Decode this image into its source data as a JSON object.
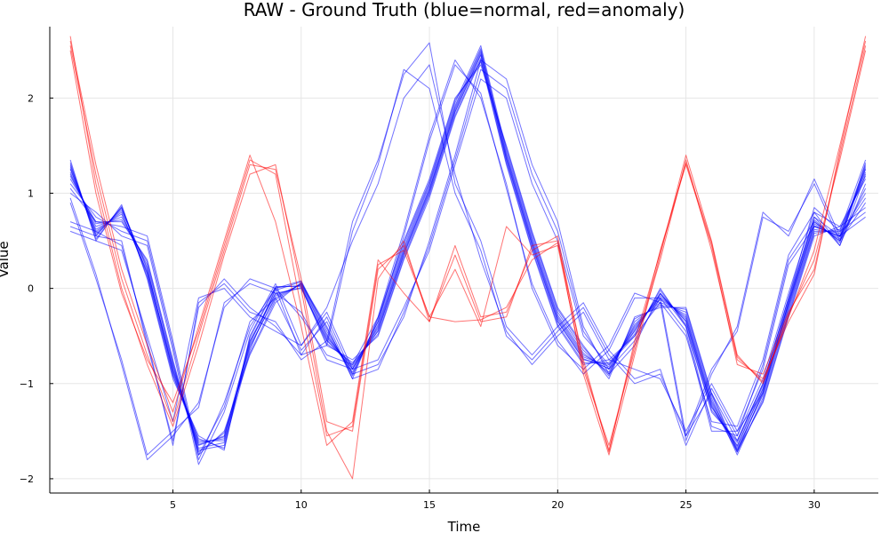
{
  "chart_data": {
    "type": "line",
    "title": "RAW - Ground Truth (blue=normal, red=anomaly)",
    "xlabel": "Time",
    "ylabel": "Value",
    "xlim": [
      0.2,
      32.5
    ],
    "ylim": [
      -2.15,
      2.75
    ],
    "xticks": [
      5,
      10,
      15,
      20,
      25,
      30
    ],
    "yticks": [
      -2,
      -1,
      0,
      1,
      2
    ],
    "grid": true,
    "legend": "none",
    "colors": {
      "normal": "#0000ff",
      "anomaly": "#ff0000"
    },
    "x": [
      1,
      2,
      3,
      4,
      5,
      6,
      7,
      8,
      9,
      10,
      11,
      12,
      13,
      14,
      15,
      16,
      17,
      18,
      19,
      20,
      21,
      22,
      23,
      24,
      25,
      26,
      27,
      28,
      29,
      30,
      31,
      32
    ],
    "series": [
      {
        "class": "normal",
        "values": [
          1.3,
          0.55,
          0.85,
          0.2,
          -0.85,
          -1.6,
          -1.6,
          -0.6,
          -0.1,
          0.05,
          -0.5,
          -0.85,
          -0.4,
          0.4,
          1.05,
          1.9,
          2.5,
          1.4,
          0.5,
          -0.3,
          -0.7,
          -0.85,
          -0.4,
          -0.1,
          -0.3,
          -1.2,
          -1.7,
          -1.1,
          -0.2,
          0.65,
          0.55,
          1.3
        ]
      },
      {
        "class": "normal",
        "values": [
          1.25,
          0.6,
          0.8,
          0.15,
          -0.9,
          -1.65,
          -1.55,
          -0.55,
          -0.05,
          0.0,
          -0.55,
          -0.8,
          -0.45,
          0.35,
          1.0,
          1.85,
          2.45,
          1.35,
          0.45,
          -0.35,
          -0.75,
          -0.8,
          -0.45,
          -0.05,
          -0.35,
          -1.25,
          -1.65,
          -1.05,
          -0.15,
          0.7,
          0.5,
          1.25
        ]
      },
      {
        "class": "normal",
        "values": [
          1.2,
          0.65,
          0.75,
          0.25,
          -0.8,
          -1.7,
          -1.65,
          -0.65,
          0.0,
          0.08,
          -0.45,
          -0.9,
          -0.35,
          0.45,
          1.1,
          1.95,
          2.55,
          1.45,
          0.55,
          -0.25,
          -0.65,
          -0.9,
          -0.35,
          -0.15,
          -0.25,
          -1.15,
          -1.75,
          -1.15,
          -0.25,
          0.6,
          0.6,
          1.35
        ]
      },
      {
        "class": "normal",
        "values": [
          1.35,
          0.5,
          0.88,
          0.1,
          -0.95,
          -1.55,
          -1.7,
          -0.5,
          0.02,
          0.02,
          -0.6,
          -0.75,
          -0.5,
          0.3,
          0.95,
          1.8,
          2.4,
          1.3,
          0.4,
          -0.4,
          -0.8,
          -0.75,
          -0.5,
          0.0,
          -0.4,
          -1.3,
          -1.6,
          -1.0,
          -0.1,
          0.75,
          0.45,
          1.2
        ]
      },
      {
        "class": "normal",
        "values": [
          1.15,
          0.7,
          0.7,
          0.3,
          -0.75,
          -1.75,
          -1.5,
          -0.7,
          -0.15,
          0.06,
          -0.4,
          -0.95,
          -0.3,
          0.5,
          1.15,
          2.0,
          2.35,
          1.5,
          0.6,
          -0.2,
          -0.6,
          -0.95,
          -0.3,
          -0.2,
          -0.2,
          -1.1,
          -1.7,
          -1.2,
          -0.3,
          0.55,
          0.65,
          1.15
        ]
      },
      {
        "class": "normal",
        "values": [
          1.28,
          0.58,
          0.82,
          0.22,
          -0.88,
          -1.62,
          -1.58,
          -0.62,
          -0.08,
          0.04,
          -0.52,
          -0.82,
          -0.42,
          0.38,
          1.02,
          1.88,
          2.48,
          1.38,
          0.48,
          -0.32,
          -0.72,
          -0.82,
          -0.42,
          -0.08,
          -0.32,
          -1.22,
          -1.72,
          -1.08,
          -0.18,
          0.68,
          0.52,
          1.28
        ]
      },
      {
        "class": "normal",
        "values": [
          1.22,
          0.62,
          0.78,
          0.18,
          -0.82,
          -1.68,
          -1.62,
          -0.58,
          -0.02,
          0.07,
          -0.48,
          -0.88,
          -0.38,
          0.42,
          1.08,
          1.92,
          2.52,
          1.42,
          0.52,
          -0.28,
          -0.68,
          -0.88,
          -0.38,
          -0.12,
          -0.28,
          -1.18,
          -1.68,
          -1.12,
          -0.22,
          0.62,
          0.58,
          1.22
        ]
      },
      {
        "class": "normal",
        "values": [
          1.32,
          0.52,
          0.86,
          0.12,
          -0.92,
          -1.58,
          -1.68,
          -0.52,
          0.01,
          0.03,
          -0.58,
          -0.78,
          -0.48,
          0.32,
          0.98,
          1.82,
          2.42,
          1.32,
          0.42,
          -0.38,
          -0.78,
          -0.78,
          -0.48,
          -0.02,
          -0.38,
          -1.28,
          -1.62,
          -1.02,
          -0.12,
          0.72,
          0.48,
          1.32
        ]
      },
      {
        "class": "normal",
        "values": [
          1.18,
          0.68,
          0.72,
          0.28,
          -0.78,
          -1.72,
          -1.52,
          -0.68,
          -0.12,
          0.05,
          -0.42,
          -0.92,
          -0.32,
          0.48,
          1.12,
          1.98,
          2.38,
          1.48,
          0.58,
          -0.22,
          -0.62,
          -0.92,
          -0.32,
          -0.18,
          -0.22,
          -1.12,
          -1.72,
          -1.18,
          -0.28,
          0.58,
          0.62,
          1.18
        ]
      },
      {
        "class": "normal",
        "values": [
          1.26,
          0.56,
          0.84,
          0.16,
          -0.86,
          -1.64,
          -1.56,
          -0.56,
          -0.06,
          0.01,
          -0.54,
          -0.84,
          -0.44,
          0.36,
          1.04,
          1.86,
          2.46,
          1.36,
          0.46,
          -0.34,
          -0.74,
          -0.84,
          -0.44,
          -0.06,
          -0.34,
          -1.24,
          -1.66,
          -1.06,
          -0.16,
          0.66,
          0.54,
          1.26
        ]
      },
      {
        "class": "normal",
        "values": [
          0.95,
          0.15,
          -0.8,
          -1.8,
          -1.55,
          -1.2,
          -0.2,
          0.1,
          0.0,
          -0.3,
          -0.7,
          -0.8,
          -0.3,
          0.6,
          1.6,
          2.4,
          2.0,
          1.1,
          0.0,
          -0.6,
          -0.85,
          -0.6,
          -0.05,
          -0.15,
          -1.6,
          -0.9,
          -0.4,
          0.8,
          0.55,
          1.15,
          0.55,
          0.95
        ]
      },
      {
        "class": "normal",
        "values": [
          0.9,
          0.1,
          -0.75,
          -1.75,
          -1.5,
          -1.25,
          -0.15,
          0.05,
          -0.05,
          -0.25,
          -0.75,
          -0.85,
          -0.35,
          0.55,
          1.55,
          2.35,
          2.05,
          1.05,
          0.05,
          -0.55,
          -0.9,
          -0.65,
          -0.1,
          -0.1,
          -1.55,
          -0.85,
          -0.45,
          0.75,
          0.6,
          1.1,
          0.5,
          0.9
        ]
      },
      {
        "class": "normal",
        "values": [
          0.65,
          0.55,
          0.5,
          -0.6,
          -1.6,
          -0.2,
          0.1,
          -0.2,
          -0.4,
          -0.7,
          -0.6,
          0.6,
          1.3,
          2.3,
          2.1,
          1.0,
          0.4,
          -0.5,
          -0.75,
          -0.45,
          -0.2,
          -0.7,
          -1.0,
          -0.9,
          -1.55,
          -1.1,
          -1.6,
          -1.0,
          -0.1,
          0.85,
          0.6,
          0.8
        ]
      },
      {
        "class": "normal",
        "values": [
          0.7,
          0.6,
          0.45,
          -0.55,
          -1.65,
          -0.15,
          0.05,
          -0.25,
          -0.35,
          -0.75,
          -0.55,
          0.7,
          1.35,
          2.25,
          2.58,
          1.1,
          0.5,
          -0.4,
          -0.7,
          -0.4,
          -0.15,
          -0.65,
          -0.95,
          -0.85,
          -1.65,
          -1.05,
          -1.55,
          -0.95,
          -0.05,
          0.8,
          0.65,
          0.85
        ]
      },
      {
        "class": "normal",
        "values": [
          0.6,
          0.5,
          0.4,
          -0.5,
          -1.4,
          -0.1,
          0.0,
          -0.3,
          -0.45,
          -0.6,
          -0.2,
          0.5,
          1.1,
          2.0,
          2.35,
          1.2,
          0.3,
          -0.45,
          -0.8,
          -0.5,
          -0.25,
          -0.75,
          -0.85,
          -0.95,
          -1.5,
          -1.0,
          -1.5,
          -1.1,
          -0.15,
          0.75,
          0.55,
          0.75
        ]
      },
      {
        "class": "normal",
        "values": [
          1.1,
          0.75,
          0.6,
          0.5,
          -0.6,
          -1.8,
          -1.2,
          -0.4,
          0.0,
          -0.7,
          -0.3,
          -0.9,
          -0.8,
          -0.3,
          0.5,
          1.4,
          2.4,
          2.2,
          1.3,
          0.7,
          -0.4,
          -0.9,
          -0.6,
          -0.05,
          -0.4,
          -1.45,
          -1.55,
          -0.8,
          0.3,
          0.7,
          0.5,
          1.05
        ]
      },
      {
        "class": "normal",
        "values": [
          1.05,
          0.7,
          0.65,
          0.55,
          -0.55,
          -1.75,
          -1.25,
          -0.35,
          -0.1,
          -0.65,
          -0.35,
          -0.95,
          -0.85,
          -0.25,
          0.45,
          1.35,
          2.3,
          2.1,
          1.2,
          0.6,
          -0.45,
          -0.85,
          -0.55,
          -0.1,
          -0.45,
          -1.5,
          -1.5,
          -0.85,
          0.25,
          0.65,
          0.55,
          1.0
        ]
      },
      {
        "class": "normal",
        "values": [
          1.0,
          0.8,
          0.55,
          0.45,
          -0.65,
          -1.85,
          -1.3,
          -0.45,
          0.05,
          -0.6,
          -0.25,
          -0.85,
          -0.75,
          -0.2,
          0.4,
          1.3,
          2.2,
          2.0,
          1.1,
          0.5,
          -0.5,
          -0.8,
          -0.5,
          -0.15,
          -0.5,
          -1.4,
          -1.45,
          -0.75,
          0.35,
          0.8,
          0.45,
          1.1
        ]
      },
      {
        "class": "anomaly",
        "values": [
          2.6,
          1.3,
          0.2,
          -0.6,
          -1.3,
          -0.4,
          0.5,
          1.4,
          0.7,
          -0.4,
          -1.65,
          -1.4,
          0.3,
          -0.05,
          -0.35,
          0.35,
          -0.35,
          -0.3,
          0.45,
          0.5,
          -0.9,
          -1.75,
          -0.7,
          0.35,
          1.4,
          0.5,
          -0.7,
          -1.0,
          -0.3,
          0.4,
          1.5,
          2.6
        ]
      },
      {
        "class": "anomaly",
        "values": [
          2.55,
          1.2,
          0.1,
          -0.7,
          -1.4,
          -0.5,
          0.4,
          1.3,
          1.25,
          0.1,
          -1.4,
          -1.5,
          0.2,
          0.45,
          -0.3,
          0.2,
          -0.4,
          0.65,
          0.35,
          0.45,
          -0.85,
          -1.65,
          -0.65,
          0.4,
          1.3,
          0.45,
          -0.8,
          -0.9,
          -0.25,
          0.2,
          1.4,
          2.55
        ]
      },
      {
        "class": "anomaly",
        "values": [
          2.65,
          1.1,
          0.0,
          -0.8,
          -1.45,
          -0.6,
          0.35,
          1.2,
          1.3,
          0.0,
          -1.5,
          -2.0,
          0.1,
          0.5,
          -0.35,
          0.45,
          -0.3,
          -0.25,
          0.4,
          0.55,
          -0.8,
          -1.7,
          -0.6,
          0.3,
          1.35,
          0.4,
          -0.75,
          -0.95,
          -0.35,
          0.15,
          1.45,
          2.65
        ]
      },
      {
        "class": "anomaly",
        "values": [
          2.5,
          1.0,
          -0.05,
          -0.75,
          -1.2,
          -0.45,
          0.45,
          1.35,
          1.2,
          -0.2,
          -1.55,
          -1.45,
          0.25,
          0.4,
          -0.3,
          -0.35,
          -0.33,
          -0.2,
          0.3,
          0.48,
          -0.75,
          -1.72,
          -0.55,
          0.38,
          1.32,
          0.48,
          -0.72,
          -0.98,
          -0.28,
          0.3,
          1.35,
          2.5
        ]
      }
    ]
  }
}
